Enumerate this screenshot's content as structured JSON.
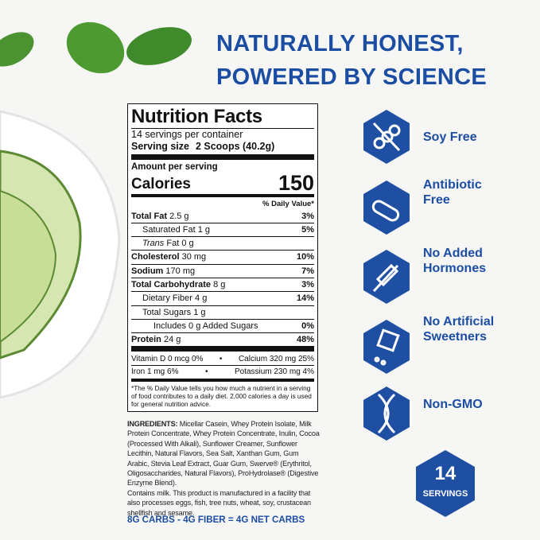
{
  "headline": [
    "NATURALLY HONEST,",
    "POWERED BY SCIENCE"
  ],
  "nutrition": {
    "title": "Nutrition Facts",
    "servings": "14 servings per container",
    "serving_size_label": "Serving size",
    "serving_size_value": "2 Scoops (40.2g)",
    "amount_per_serving": "Amount per serving",
    "calories_label": "Calories",
    "calories_value": "150",
    "dv_header": "% Daily Value*",
    "rows": [
      {
        "label": "Total Fat",
        "amount": "2.5 g",
        "dv": "3%",
        "bold": true,
        "indent": 0
      },
      {
        "label": "Saturated Fat",
        "amount": "1 g",
        "dv": "5%",
        "bold": false,
        "indent": 1
      },
      {
        "italic": "Trans",
        "label": "Fat",
        "amount": "0 g",
        "bold": false,
        "indent": 1
      },
      {
        "label": "Cholesterol",
        "amount": "30 mg",
        "dv": "10%",
        "bold": true,
        "indent": 0
      },
      {
        "label": "Sodium",
        "amount": "170 mg",
        "dv": "7%",
        "bold": true,
        "indent": 0
      },
      {
        "label": "Total Carbohydrate",
        "amount": "8 g",
        "dv": "3%",
        "bold": true,
        "indent": 0
      },
      {
        "label": "Dietary Fiber",
        "amount": "4 g",
        "dv": "14%",
        "bold": false,
        "indent": 1
      },
      {
        "label": "Total Sugars",
        "amount": "1 g",
        "bold": false,
        "indent": 1
      },
      {
        "label": "Includes 0 g Added Sugars",
        "dv": "0%",
        "bold": false,
        "indent": 2
      },
      {
        "label": "Protein",
        "amount": "24 g",
        "dv": "48%",
        "bold": true,
        "indent": 0
      }
    ],
    "vitamins": [
      [
        "Vitamin D 0 mcg 0%",
        "Calcium 320 mg 25%"
      ],
      [
        "Iron 1 mg 6%",
        "Potassium 230 mg 4%"
      ]
    ],
    "footnote": "*The % Daily Value tells you how much a nutrient in a serving of food contributes to a daily diet. 2,000 calories a day is used for general nutrition advice."
  },
  "ingredients": {
    "label": "INGREDIENTS:",
    "text": "Micellar Casein, Whey Protein Isolate, Milk Protein Concentrate, Whey Protein Concentrate, Inulin, Cocoa (Processed With Alkali), Sunflower Creamer, Sunflower Lecithin, Natural Flavors, Sea Salt, Xanthan Gum, Gum Arabic, Stevia Leaf Extract, Guar Gum, Swerve® (Erythritol, Oligosaccharides, Natural Flavors), ProHydrolase® (Digestive Enzyme Blend).",
    "contains": "Contains milk. This product is manufactured in a facility that also processes eggs, fish, tree nuts, wheat, soy, crustacean shellfish and sesame.",
    "net_carbs": "8G CARBS - 4G FIBER = 4G NET CARBS"
  },
  "badges": [
    [
      "Soy Free"
    ],
    [
      "Antibiotic",
      "Free"
    ],
    [
      "No Added",
      "Hormones"
    ],
    [
      "No Artificial",
      "Sweetners"
    ],
    [
      "Non-GMO"
    ]
  ],
  "servings_badge": {
    "number": "14",
    "label": "SERVINGS"
  }
}
